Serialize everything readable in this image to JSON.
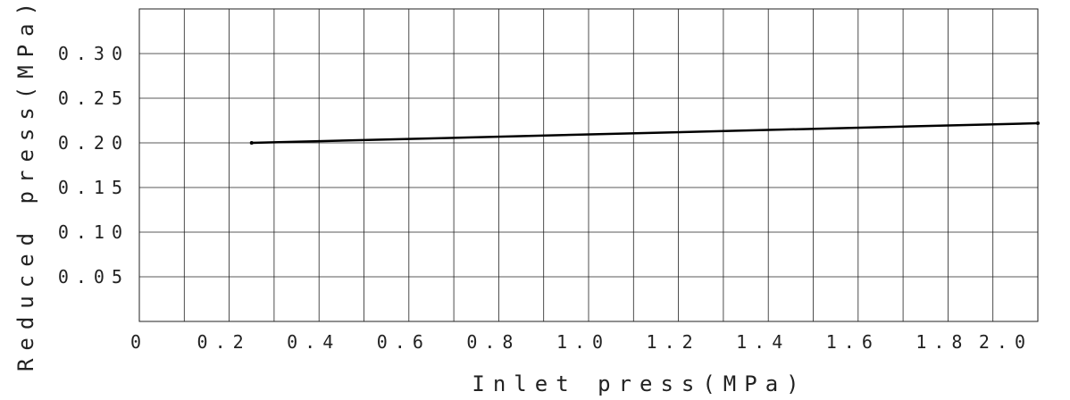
{
  "chart_data": {
    "type": "line",
    "xlabel": "Inlet press(MPa)",
    "ylabel": "Reduced press(MPa)",
    "xlim": [
      0,
      2.0
    ],
    "ylim": [
      0,
      0.35
    ],
    "x_ticks": [
      "0",
      "0.2",
      "0.4",
      "0.6",
      "0.8",
      "1.0",
      "1.2",
      "1.4",
      "1.6",
      "1.8",
      "2.0"
    ],
    "y_ticks": [
      "0.05",
      "0.10",
      "0.15",
      "0.20",
      "0.25",
      "0.30"
    ],
    "grid": true,
    "series": [
      {
        "x": [
          0.25,
          2.0
        ],
        "y": [
          0.2,
          0.222
        ]
      }
    ]
  }
}
